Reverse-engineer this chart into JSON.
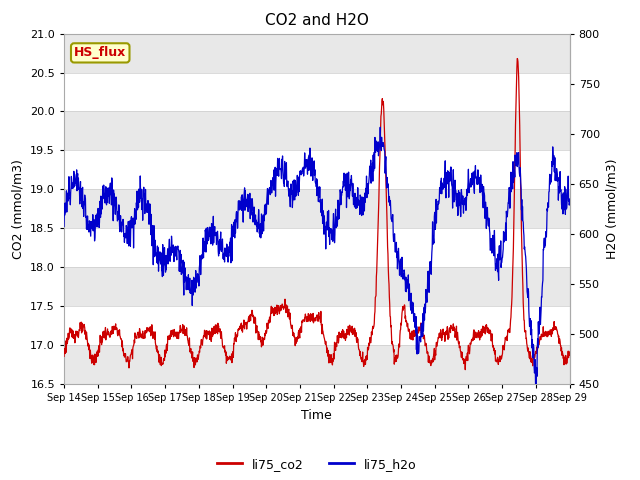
{
  "title": "CO2 and H2O",
  "xlabel": "Time",
  "ylabel_left": "CO2 (mmol/m3)",
  "ylabel_right": "H2O (mmol/m3)",
  "ylim_left": [
    16.5,
    21.0
  ],
  "ylim_right": [
    450,
    800
  ],
  "yticks_left": [
    16.5,
    17.0,
    17.5,
    18.0,
    18.5,
    19.0,
    19.5,
    20.0,
    20.5,
    21.0
  ],
  "yticks_right": [
    450,
    500,
    550,
    600,
    650,
    700,
    750,
    800
  ],
  "xtick_labels": [
    "Sep 14",
    "Sep 15",
    "Sep 16",
    "Sep 17",
    "Sep 18",
    "Sep 19",
    "Sep 20",
    "Sep 21",
    "Sep 22",
    "Sep 23",
    "Sep 24",
    "Sep 25",
    "Sep 26",
    "Sep 27",
    "Sep 28",
    "Sep 29"
  ],
  "legend_labels": [
    "li75_co2",
    "li75_h2o"
  ],
  "color_co2": "#cc0000",
  "color_h2o": "#0000cc",
  "label_box_text": "HS_flux",
  "label_box_facecolor": "#ffffcc",
  "label_box_edgecolor": "#999900",
  "label_box_textcolor": "#cc0000",
  "background_band_color": "#e8e8e8",
  "fig_bg": "#ffffff"
}
